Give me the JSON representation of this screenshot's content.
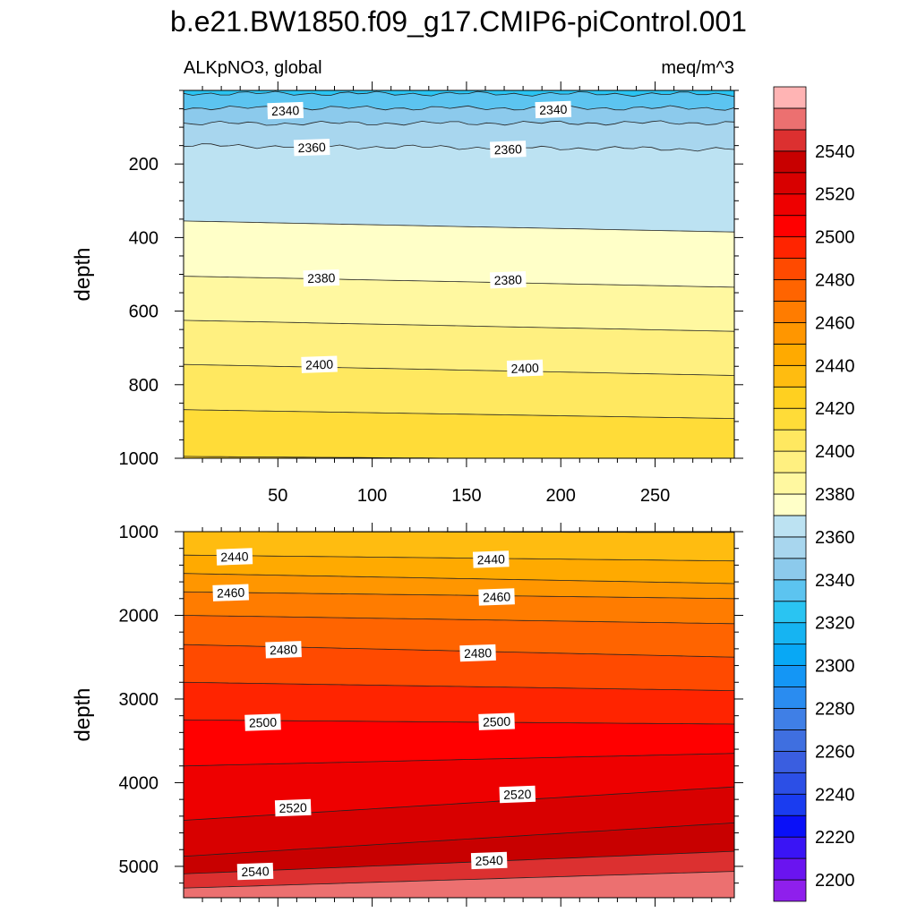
{
  "title": "b.e21.BW1850.f09_g17.CMIP6-piControl.001",
  "subtitle_left": "ALKpNO3, global",
  "subtitle_right": "meq/m^3",
  "chart_data": {
    "type": "contour",
    "variable": "ALKpNO3",
    "units": "meq/m^3",
    "x_ticks": [
      "50",
      "100",
      "150",
      "200",
      "250"
    ],
    "xlim": [
      0,
      292
    ],
    "top_panel": {
      "ylabel": "depth",
      "ylim": [
        0,
        1000
      ],
      "yticks": [
        "200",
        "400",
        "600",
        "800",
        "1000"
      ],
      "contours": [
        {
          "level": 2330,
          "depths": [
            8,
            10
          ]
        },
        {
          "level": 2340,
          "depths": [
            48,
            48
          ]
        },
        {
          "level": 2350,
          "depths": [
            90,
            88
          ]
        },
        {
          "level": 2360,
          "depths": [
            150,
            160
          ]
        },
        {
          "level": 2370,
          "depths": [
            355,
            385
          ]
        },
        {
          "level": 2380,
          "depths": [
            505,
            535
          ]
        },
        {
          "level": 2390,
          "depths": [
            625,
            655
          ]
        },
        {
          "level": 2400,
          "depths": [
            745,
            775
          ]
        },
        {
          "level": 2410,
          "depths": [
            868,
            892
          ]
        },
        {
          "level": 2420,
          "depths": [
            995,
            1005
          ]
        }
      ],
      "labels": [
        {
          "text": "2340",
          "x": 54,
          "y": 55
        },
        {
          "text": "2340",
          "x": 196,
          "y": 52
        },
        {
          "text": "2360",
          "x": 68,
          "y": 155
        },
        {
          "text": "2360",
          "x": 172,
          "y": 160
        },
        {
          "text": "2380",
          "x": 73,
          "y": 510
        },
        {
          "text": "2380",
          "x": 172,
          "y": 515
        },
        {
          "text": "2400",
          "x": 72,
          "y": 745
        },
        {
          "text": "2400",
          "x": 181,
          "y": 755
        }
      ]
    },
    "bottom_panel": {
      "ylabel": "depth",
      "ylim": [
        1000,
        5375
      ],
      "yticks": [
        "1000",
        "2000",
        "3000",
        "4000",
        "5000"
      ],
      "contours": [
        {
          "level": 2430,
          "depths": [
            1000,
            1010
          ]
        },
        {
          "level": 2440,
          "depths": [
            1280,
            1350
          ]
        },
        {
          "level": 2450,
          "depths": [
            1500,
            1620
          ]
        },
        {
          "level": 2460,
          "depths": [
            1720,
            1800
          ]
        },
        {
          "level": 2470,
          "depths": [
            2000,
            2100
          ]
        },
        {
          "level": 2480,
          "depths": [
            2350,
            2500
          ]
        },
        {
          "level": 2490,
          "depths": [
            2800,
            2900
          ]
        },
        {
          "level": 2500,
          "depths": [
            3250,
            3300
          ]
        },
        {
          "level": 2510,
          "depths": [
            3800,
            3650
          ]
        },
        {
          "level": 2520,
          "depths": [
            4450,
            4050
          ]
        },
        {
          "level": 2530,
          "depths": [
            4880,
            4480
          ]
        },
        {
          "level": 2540,
          "depths": [
            5090,
            4820
          ]
        },
        {
          "level": 2550,
          "depths": [
            5260,
            5060
          ]
        }
      ],
      "labels": [
        {
          "text": "2440",
          "x": 27,
          "y": 1300
        },
        {
          "text": "2440",
          "x": 163,
          "y": 1330
        },
        {
          "text": "2460",
          "x": 25,
          "y": 1730
        },
        {
          "text": "2460",
          "x": 166,
          "y": 1780
        },
        {
          "text": "2480",
          "x": 53,
          "y": 2410
        },
        {
          "text": "2480",
          "x": 156,
          "y": 2450
        },
        {
          "text": "2500",
          "x": 42,
          "y": 3280
        },
        {
          "text": "2500",
          "x": 166,
          "y": 3270
        },
        {
          "text": "2520",
          "x": 58,
          "y": 4300
        },
        {
          "text": "2520",
          "x": 177,
          "y": 4140
        },
        {
          "text": "2540",
          "x": 38,
          "y": 5060
        },
        {
          "text": "2540",
          "x": 162,
          "y": 4930
        }
      ]
    },
    "colorbar": {
      "levels": [
        2200,
        2210,
        2220,
        2230,
        2240,
        2250,
        2260,
        2270,
        2280,
        2290,
        2300,
        2310,
        2320,
        2330,
        2340,
        2350,
        2360,
        2370,
        2380,
        2390,
        2400,
        2410,
        2420,
        2430,
        2440,
        2450,
        2460,
        2470,
        2480,
        2490,
        2500,
        2510,
        2520,
        2530,
        2540,
        2550
      ],
      "tick_labels": [
        "2200",
        "2220",
        "2240",
        "2260",
        "2280",
        "2300",
        "2320",
        "2340",
        "2360",
        "2380",
        "2400",
        "2420",
        "2440",
        "2460",
        "2480",
        "2500",
        "2520",
        "2540"
      ],
      "colors": [
        "#8f1fec",
        "#6a14f0",
        "#3a14f5",
        "#0a10f8",
        "#1a3cf0",
        "#2c4fe6",
        "#3a5ee0",
        "#3f6fe0",
        "#3f7fe6",
        "#2a8cf0",
        "#1496f5",
        "#08a8f5",
        "#16b4f2",
        "#2ac4f2",
        "#5cc4f0",
        "#8ccaec",
        "#a8d6ee",
        "#bce2f2",
        "#ffffc8",
        "#fff8a0",
        "#fff080",
        "#ffe860",
        "#ffdc38",
        "#ffd020",
        "#ffbc10",
        "#ffaa00",
        "#ff9600",
        "#ff7c00",
        "#ff6400",
        "#ff4a00",
        "#ff2400",
        "#ff0000",
        "#ee0000",
        "#d80000",
        "#c80000",
        "#dc3030",
        "#ec7070",
        "#ffb4b4"
      ]
    }
  }
}
